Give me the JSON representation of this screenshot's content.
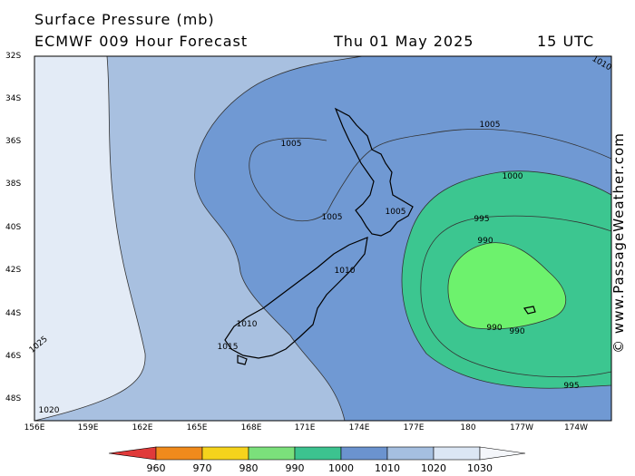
{
  "header": {
    "title": "Surface Pressure (mb)",
    "subtitle": "ECMWF 009 Hour Forecast",
    "date": "Thu 01 May 2025",
    "time": "15 UTC"
  },
  "credit": "© www.PassageWeather.com",
  "latitudes": [
    "32S",
    "34S",
    "36S",
    "38S",
    "40S",
    "42S",
    "44S",
    "46S",
    "48S"
  ],
  "longitudes": [
    "156E",
    "159E",
    "162E",
    "165E",
    "168E",
    "171E",
    "174E",
    "177E",
    "180",
    "177W",
    "174W"
  ],
  "isobar_labels": [
    "1010",
    "1005",
    "1005",
    "1005",
    "1005",
    "1000",
    "995",
    "990",
    "990",
    "990",
    "995",
    "1010",
    "1010",
    "1015",
    "1020",
    "1025"
  ],
  "colorbar": {
    "ticks": [
      "960",
      "970",
      "980",
      "990",
      "1000",
      "1010",
      "1020",
      "1030"
    ],
    "colors": [
      "#e03a3a",
      "#f08a1c",
      "#f5d31c",
      "#7be07b",
      "#3cc38f",
      "#6b93cf",
      "#a5bfe0",
      "#dbe6f4"
    ]
  },
  "fill_colors": {
    "over_1015": "#e3ebf6",
    "1010_1015": "#a8c0e0",
    "1005_1010": "#7099d3",
    "995_1005": "#6b93cf",
    "990_995": "#3cc690",
    "under_990": "#6df26d",
    "land_outline": "#000000"
  }
}
